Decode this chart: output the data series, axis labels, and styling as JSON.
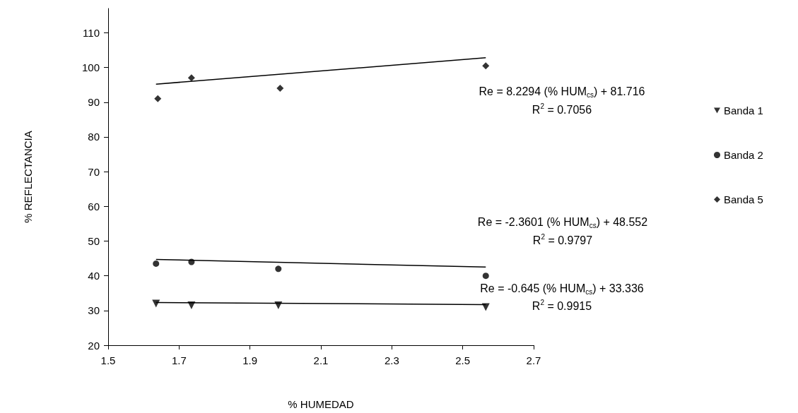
{
  "chart_data": {
    "type": "scatter",
    "xlabel": "% HUMEDAD",
    "ylabel": "% REFLECTANCIA",
    "xlim": [
      1.5,
      2.7
    ],
    "xticks": [
      1.5,
      1.7,
      1.9,
      2.1,
      2.3,
      2.5,
      2.7
    ],
    "ylim": [
      20,
      117
    ],
    "yticks": [
      20,
      30,
      40,
      50,
      60,
      70,
      80,
      90,
      100,
      110
    ],
    "grid": false,
    "legend": "right",
    "series": [
      {
        "name": "Banda 1",
        "marker": "triangle",
        "color": "#000000",
        "x": [
          1.635,
          1.735,
          1.98,
          2.565
        ],
        "values": [
          32,
          31.5,
          31.5,
          31
        ]
      },
      {
        "name": "Banda 2",
        "marker": "circle",
        "color": "#000000",
        "x": [
          1.635,
          1.735,
          1.98,
          2.565
        ],
        "values": [
          43.5,
          44,
          42,
          40
        ]
      },
      {
        "name": "Banda 5",
        "marker": "diamond",
        "color": "#000000",
        "x": [
          1.64,
          1.735,
          1.985,
          2.565
        ],
        "values": [
          91,
          97,
          94,
          100.5
        ]
      },
      {
        "type": "line",
        "marker": "none",
        "line_style": "solid",
        "color": "#000000",
        "x": [
          1.635,
          2.565
        ],
        "values": [
          95.2,
          102.8
        ]
      },
      {
        "type": "line",
        "marker": "none",
        "line_style": "solid",
        "color": "#000000",
        "x": [
          1.635,
          2.565
        ],
        "values": [
          44.7,
          42.5
        ]
      },
      {
        "type": "line",
        "marker": "none",
        "line_style": "solid",
        "color": "#000000",
        "x": [
          1.635,
          2.565
        ],
        "values": [
          32.3,
          31.7
        ]
      }
    ],
    "annotations": [
      "Re = 8.2294 (% HUM$_{cs}$) + 81.716",
      "R$^{2}$ = 0.7056",
      "Re = -2.3601 (% HUM$_{cs}$) + 48.552",
      "R$^{2}$ = 0.9797",
      "Re = -0.645 (% HUM$_{cs}$) + 33.336",
      "R$^{2}$ = 0.9915"
    ]
  }
}
